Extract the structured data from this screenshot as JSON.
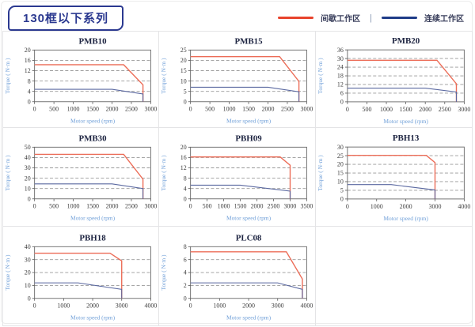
{
  "header": {
    "title": "130框以下系列",
    "legend": {
      "items": [
        {
          "label": "间歇工作区",
          "color": "#e8432c"
        },
        {
          "label": "连续工作区",
          "color": "#1f3c88"
        }
      ],
      "separator": "|"
    }
  },
  "colors": {
    "accent_navy": "#2b3990",
    "chart_red_line": "#ec6d58",
    "chart_blue_line": "#5a68a0",
    "grid_line": "#999999",
    "axis_label_blue": "#6f9fd8",
    "cell_border": "#e4e4e6"
  },
  "chart_data": [
    {
      "type": "line",
      "title": "PMB10",
      "xlabel": "Motor speed (rpm)",
      "ylabel": "Torque ( N·m )",
      "xlim": [
        0,
        3000
      ],
      "xstep": 500,
      "ylim": [
        0,
        20
      ],
      "ystep": 4,
      "grid": true,
      "series": [
        {
          "name": "间歇工作区",
          "color": "red",
          "points": [
            [
              0,
              14.3
            ],
            [
              2300,
              14.3
            ],
            [
              2800,
              6.5
            ],
            [
              2800,
              0
            ]
          ]
        },
        {
          "name": "连续工作区",
          "color": "blue",
          "points": [
            [
              0,
              4.8
            ],
            [
              2000,
              4.8
            ],
            [
              2800,
              3.0
            ],
            [
              2800,
              0
            ]
          ]
        }
      ]
    },
    {
      "type": "line",
      "title": "PMB15",
      "xlabel": "Motor speed (rpm)",
      "ylabel": "Torque ( N·m )",
      "xlim": [
        0,
        3000
      ],
      "xstep": 500,
      "ylim": [
        0,
        25
      ],
      "ystep": 5,
      "grid": true,
      "series": [
        {
          "name": "间歇工作区",
          "color": "red",
          "points": [
            [
              0,
              21.8
            ],
            [
              2300,
              21.8
            ],
            [
              2800,
              9.8
            ],
            [
              2800,
              0
            ]
          ]
        },
        {
          "name": "连续工作区",
          "color": "blue",
          "points": [
            [
              0,
              7.0
            ],
            [
              2000,
              7.0
            ],
            [
              2800,
              4.8
            ],
            [
              2800,
              0
            ]
          ]
        }
      ]
    },
    {
      "type": "line",
      "title": "PMB20",
      "xlabel": "Motor speed (rpm)",
      "ylabel": "Torque ( N·m )",
      "xlim": [
        0,
        3000
      ],
      "xstep": 500,
      "ylim": [
        0,
        36
      ],
      "ystep": 6,
      "grid": true,
      "series": [
        {
          "name": "间歇工作区",
          "color": "red",
          "points": [
            [
              0,
              28.8
            ],
            [
              2300,
              28.8
            ],
            [
              2800,
              12.5
            ],
            [
              2800,
              0
            ]
          ]
        },
        {
          "name": "连续工作区",
          "color": "blue",
          "points": [
            [
              0,
              9.5
            ],
            [
              2000,
              9.5
            ],
            [
              2800,
              6.8
            ],
            [
              2800,
              0
            ]
          ]
        }
      ]
    },
    {
      "type": "line",
      "title": "PMB30",
      "xlabel": "Motor speed (rpm)",
      "ylabel": "Torque ( N·m )",
      "xlim": [
        0,
        3000
      ],
      "xstep": 500,
      "ylim": [
        0,
        50
      ],
      "ystep": 10,
      "grid": true,
      "series": [
        {
          "name": "间歇工作区",
          "color": "red",
          "points": [
            [
              0,
              43
            ],
            [
              2300,
              43
            ],
            [
              2800,
              19
            ],
            [
              2800,
              0
            ]
          ]
        },
        {
          "name": "连续工作区",
          "color": "blue",
          "points": [
            [
              0,
              14.5
            ],
            [
              2000,
              14.5
            ],
            [
              2800,
              10
            ],
            [
              2800,
              0
            ]
          ]
        }
      ]
    },
    {
      "type": "line",
      "title": "PBH09",
      "xlabel": "Motor speed (rpm)",
      "ylabel": "Torque ( N·m )",
      "xlim": [
        0,
        3500
      ],
      "xstep": 500,
      "ylim": [
        0,
        20
      ],
      "ystep": 4,
      "grid": true,
      "series": [
        {
          "name": "间歇工作区",
          "color": "red",
          "points": [
            [
              0,
              16.2
            ],
            [
              2700,
              16.2
            ],
            [
              3000,
              13
            ],
            [
              3000,
              0
            ]
          ]
        },
        {
          "name": "连续工作区",
          "color": "blue",
          "points": [
            [
              0,
              5.3
            ],
            [
              1500,
              5.3
            ],
            [
              3000,
              3.0
            ],
            [
              3000,
              0
            ]
          ]
        }
      ]
    },
    {
      "type": "line",
      "title": "PBH13",
      "xlabel": "Motor speed (rpm)",
      "ylabel": "Torque ( N·m )",
      "xlim": [
        0,
        4000
      ],
      "xstep": 1000,
      "ylim": [
        0,
        30
      ],
      "ystep": 5,
      "grid": true,
      "series": [
        {
          "name": "间歇工作区",
          "color": "red",
          "points": [
            [
              0,
              25.2
            ],
            [
              2700,
              25.2
            ],
            [
              3000,
              21
            ],
            [
              3000,
              0
            ]
          ]
        },
        {
          "name": "连续工作区",
          "color": "blue",
          "points": [
            [
              0,
              8.3
            ],
            [
              1500,
              8.3
            ],
            [
              3000,
              5.2
            ],
            [
              3000,
              0
            ]
          ]
        }
      ]
    },
    {
      "type": "line",
      "title": "PBH18",
      "xlabel": "Motor speed (rpm)",
      "ylabel": "Torque ( N·m )",
      "xlim": [
        0,
        4000
      ],
      "xstep": 1000,
      "ylim": [
        0,
        40
      ],
      "ystep": 10,
      "grid": true,
      "series": [
        {
          "name": "间歇工作区",
          "color": "red",
          "points": [
            [
              0,
              35
            ],
            [
              2600,
              35
            ],
            [
              3000,
              29
            ],
            [
              3000,
              0
            ]
          ]
        },
        {
          "name": "连续工作区",
          "color": "blue",
          "points": [
            [
              0,
              12
            ],
            [
              1500,
              12
            ],
            [
              3000,
              7
            ],
            [
              3000,
              0
            ]
          ]
        }
      ]
    },
    {
      "type": "line",
      "title": "PLC08",
      "xlabel": "Motor speed (rpm)",
      "ylabel": "Torque ( N·m )",
      "xlim": [
        0,
        4000
      ],
      "xstep": 1000,
      "ylim": [
        0,
        8
      ],
      "ystep": 2,
      "grid": true,
      "series": [
        {
          "name": "间歇工作区",
          "color": "red",
          "points": [
            [
              0,
              7.2
            ],
            [
              3300,
              7.2
            ],
            [
              3850,
              3.0
            ],
            [
              3850,
              0
            ]
          ]
        },
        {
          "name": "连续工作区",
          "color": "blue",
          "points": [
            [
              0,
              2.4
            ],
            [
              3000,
              2.4
            ],
            [
              3850,
              1.4
            ],
            [
              3850,
              0
            ]
          ]
        }
      ]
    }
  ]
}
